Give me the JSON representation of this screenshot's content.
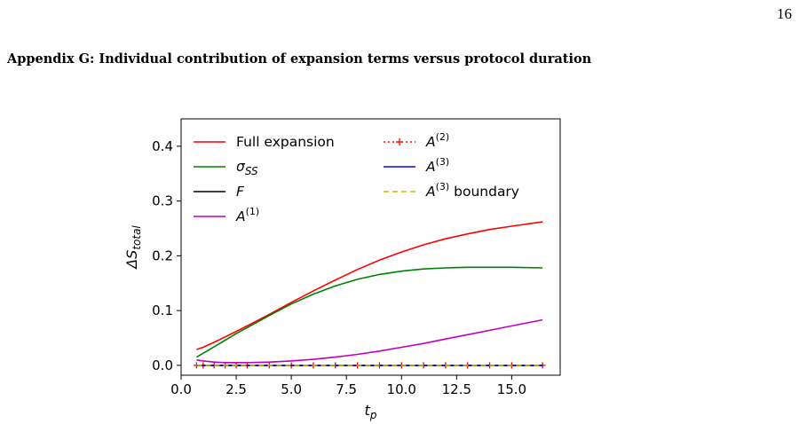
{
  "page": {
    "page_number": "16",
    "heading": "Appendix G: Individual contribution of expansion terms versus protocol duration"
  },
  "chart_data": {
    "type": "line",
    "xlabel": "t_p",
    "ylabel": "ΔS_total",
    "xlim": [
      0.0,
      17.2
    ],
    "ylim": [
      -0.018,
      0.45
    ],
    "xticks": [
      0.0,
      2.5,
      5.0,
      7.5,
      10.0,
      12.5,
      15.0
    ],
    "xtick_labels": [
      "0.0",
      "2.5",
      "5.0",
      "7.5",
      "10.0",
      "12.5",
      "15.0"
    ],
    "yticks": [
      0.0,
      0.1,
      0.2,
      0.3,
      0.4
    ],
    "ytick_labels": [
      "0.0",
      "0.1",
      "0.2",
      "0.3",
      "0.4"
    ],
    "grid": false,
    "legend_placement": "top-left, two columns",
    "x": [
      0.7,
      1.0,
      1.5,
      2.0,
      2.5,
      3.0,
      4.0,
      5.0,
      6.0,
      7.0,
      8.0,
      9.0,
      10.0,
      11.0,
      12.0,
      13.0,
      14.0,
      15.0,
      16.4
    ],
    "series": [
      {
        "name": "Full expansion",
        "legend": "Full expansion",
        "color": "#ff0000",
        "style": "solid",
        "values": [
          0.029,
          0.033,
          0.042,
          0.052,
          0.062,
          0.072,
          0.093,
          0.115,
          0.136,
          0.156,
          0.175,
          0.192,
          0.207,
          0.22,
          0.231,
          0.24,
          0.248,
          0.254,
          0.262
        ]
      },
      {
        "name": "σ_SS",
        "legend": "σ",
        "legend_sub": "SS",
        "color": "#008000",
        "style": "solid",
        "values": [
          0.015,
          0.022,
          0.034,
          0.046,
          0.058,
          0.069,
          0.091,
          0.112,
          0.13,
          0.145,
          0.157,
          0.166,
          0.172,
          0.176,
          0.178,
          0.179,
          0.179,
          0.179,
          0.178
        ]
      },
      {
        "name": "F",
        "legend": "F",
        "color": "#000000",
        "style": "solid",
        "values": [
          0.0,
          0.0,
          0.0,
          0.0,
          0.0,
          0.0,
          0.0,
          0.0,
          0.0,
          0.0,
          0.0,
          0.0,
          0.0,
          0.0,
          0.0,
          0.0,
          0.0,
          0.0,
          0.0
        ]
      },
      {
        "name": "A^(1)",
        "legend": "A",
        "legend_sup": "(1)",
        "color": "#bf00bf",
        "style": "solid",
        "values": [
          0.01,
          0.008,
          0.006,
          0.005,
          0.005,
          0.005,
          0.006,
          0.008,
          0.011,
          0.015,
          0.02,
          0.026,
          0.033,
          0.04,
          0.048,
          0.056,
          0.064,
          0.072,
          0.083
        ]
      },
      {
        "name": "A^(2)",
        "legend": "A",
        "legend_sup": "(2)",
        "color": "#ff0000",
        "style": "dotted-plus",
        "values": [
          0.0,
          0.0,
          0.0,
          0.0,
          0.0,
          0.0,
          0.0,
          0.0,
          0.0,
          0.0,
          0.0,
          0.0,
          0.0,
          0.0,
          0.0,
          0.0,
          0.0,
          0.0,
          0.0
        ]
      },
      {
        "name": "A^(3)",
        "legend": "A",
        "legend_sup": "(3)",
        "color": "#0000ff",
        "style": "solid",
        "values": [
          0.0,
          0.0,
          0.0,
          0.0,
          0.0,
          0.0,
          0.0,
          0.0,
          0.0,
          0.0,
          0.0,
          0.0,
          0.0,
          0.0,
          0.0,
          0.0,
          0.0,
          0.0,
          0.0
        ]
      },
      {
        "name": "A^(3) boundary",
        "legend": "A",
        "legend_sup": "(3)",
        "legend_suffix": " boundary",
        "color": "#bfbf00",
        "style": "dashed",
        "values": [
          0.0,
          0.0,
          0.0,
          0.0,
          0.0,
          0.0,
          0.0,
          0.0,
          0.0,
          0.0,
          0.0,
          0.0,
          0.0,
          0.0,
          0.0,
          0.0,
          0.0,
          0.0,
          0.0
        ]
      }
    ]
  }
}
